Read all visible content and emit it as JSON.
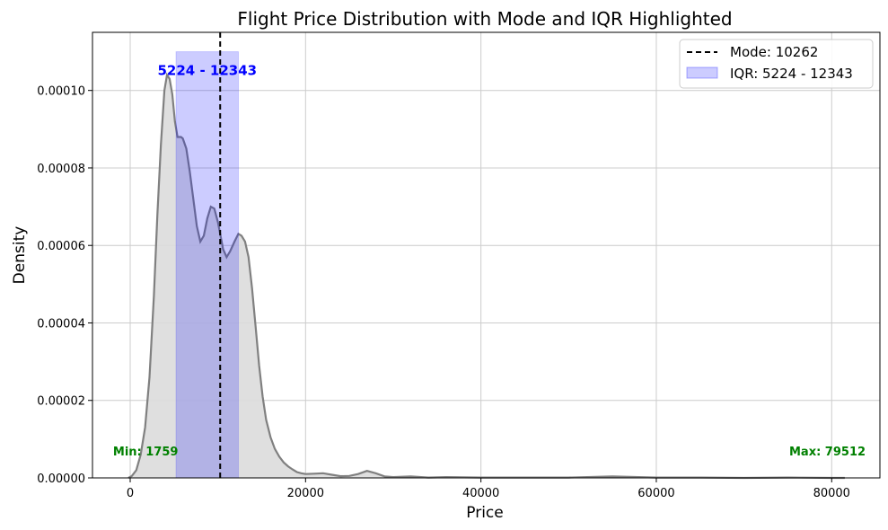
{
  "chart_data": {
    "type": "area",
    "title": "Flight Price Distribution with Mode and IQR Highlighted",
    "xlabel": "Price",
    "ylabel": "Density",
    "xlim": [
      -4300,
      85500
    ],
    "ylim": [
      0,
      0.000115
    ],
    "x_ticks": [
      0,
      20000,
      40000,
      60000,
      80000
    ],
    "x_tick_labels": [
      "0",
      "20000",
      "40000",
      "60000",
      "80000"
    ],
    "y_ticks": [
      0,
      2e-05,
      4e-05,
      6e-05,
      8e-05,
      0.0001
    ],
    "y_tick_labels": [
      "0.00000",
      "0.00002",
      "0.00004",
      "0.00006",
      "0.00008",
      "0.00010"
    ],
    "grid": true,
    "legend_position": "upper right",
    "series": [
      {
        "name": "",
        "color": "#808080",
        "fill": "#dcdcdc",
        "x": [
          -200,
          200,
          700,
          1200,
          1700,
          2200,
          2700,
          3100,
          3500,
          3900,
          4200,
          4500,
          4800,
          5100,
          5400,
          5800,
          6000,
          6400,
          6800,
          7200,
          7600,
          8000,
          8400,
          8800,
          9200,
          9600,
          10000,
          10262,
          10600,
          11000,
          11400,
          11900,
          12343,
          12700,
          13100,
          13500,
          13900,
          14300,
          14700,
          15100,
          15500,
          16000,
          16500,
          17000,
          17500,
          18000,
          18500,
          19000,
          19500,
          20000,
          21000,
          22000,
          23000,
          24000,
          25000,
          26000,
          27000,
          28000,
          29000,
          30000,
          32000,
          34000,
          36000,
          40000,
          45000,
          50000,
          55000,
          60000,
          65000,
          70000,
          75000,
          80000,
          81500
        ],
        "y": [
          0,
          5e-07,
          2e-06,
          6e-06,
          1.3e-05,
          2.6e-05,
          4.7e-05,
          6.8e-05,
          8.6e-05,
          0.0001,
          0.000104,
          0.000103,
          9.9e-05,
          9.2e-05,
          8.8e-05,
          8.8e-05,
          8.76e-05,
          8.5e-05,
          7.9e-05,
          7.2e-05,
          6.5e-05,
          6.1e-05,
          6.25e-05,
          6.7e-05,
          7e-05,
          6.95e-05,
          6.6e-05,
          6.3e-05,
          5.9e-05,
          5.7e-05,
          5.85e-05,
          6.1e-05,
          6.3e-05,
          6.25e-05,
          6.1e-05,
          5.7e-05,
          4.9e-05,
          3.9e-05,
          2.9e-05,
          2.1e-05,
          1.5e-05,
          1.05e-05,
          7.5e-06,
          5.5e-06,
          4e-06,
          3e-06,
          2.2e-06,
          1.5e-06,
          1.2e-06,
          1e-06,
          1.1e-06,
          1.2e-06,
          8e-07,
          4.5e-07,
          5e-07,
          1e-06,
          1.8e-06,
          1.2e-06,
          4e-07,
          2e-07,
          4e-07,
          1e-07,
          2e-07,
          1e-07,
          1e-07,
          1e-07,
          4e-07,
          1e-07,
          1e-07,
          0,
          1e-07,
          0,
          0
        ]
      }
    ],
    "mode": {
      "value": 10262,
      "color": "#000000",
      "legend_label": "Mode: 10262"
    },
    "iqr": {
      "low": 5224,
      "high": 12343,
      "top": 0.00011,
      "color": "#0000ff",
      "label": "5224 - 12343",
      "legend_label": "IQR: 5224 - 12343"
    },
    "annotations": {
      "min": {
        "value": 1759,
        "text": "Min: 1759"
      },
      "max": {
        "value": 79512,
        "text": "Max: 79512"
      },
      "color": "#008000"
    }
  }
}
